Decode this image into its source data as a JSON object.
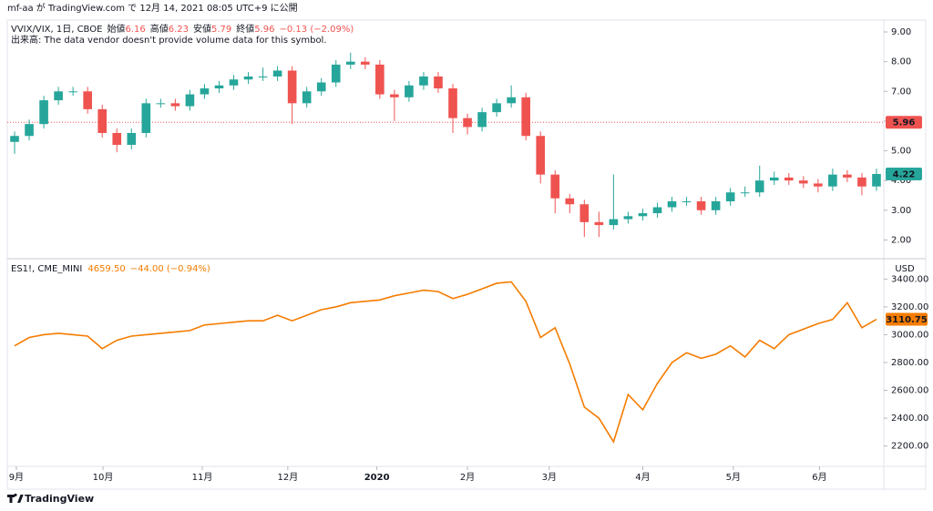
{
  "header": "mf-aa が TradingView.com で 12月 14, 2021 08:05 UTC+9 に公開",
  "footer": "TradingView",
  "chart_data": [
    {
      "type": "candlestick",
      "title": "VVIX/VIX, 1日, CBOE",
      "legend": [
        {
          "label": "始値",
          "value": "6.16"
        },
        {
          "label": "高値",
          "value": "6.23"
        },
        {
          "label": "安値",
          "value": "5.79"
        },
        {
          "label": "終値",
          "value": "5.96"
        }
      ],
      "change": "−0.13 (−2.09%)",
      "note": "出来高: The data vendor doesn't provide volume data for this symbol.",
      "up_color": "#26a69a",
      "down_color": "#ef5350",
      "price_line": 5.96,
      "xlim": [
        -0.5,
        59.5
      ],
      "ylim": [
        1.4,
        9.4
      ],
      "yticks": [
        {
          "value": 2,
          "label": "2.00"
        },
        {
          "value": 3,
          "label": "3.00"
        },
        {
          "value": 4,
          "label": "4.00"
        },
        {
          "value": 5,
          "label": "5.00"
        },
        {
          "value": 6,
          "label": "6.00"
        },
        {
          "value": 7,
          "label": "7.00"
        },
        {
          "value": 8,
          "label": "8.00"
        },
        {
          "value": 9,
          "label": "9.00"
        }
      ],
      "open": [
        5.3,
        5.5,
        5.9,
        6.7,
        7.0,
        7.0,
        6.4,
        5.6,
        5.2,
        5.6,
        6.6,
        6.6,
        6.5,
        6.9,
        7.1,
        7.2,
        7.4,
        7.5,
        7.5,
        7.7,
        6.6,
        7.0,
        7.3,
        7.9,
        8.0,
        7.9,
        6.9,
        6.8,
        7.2,
        7.5,
        7.1,
        6.1,
        5.8,
        6.3,
        6.6,
        6.8,
        5.5,
        4.2,
        3.4,
        3.2,
        2.6,
        2.5,
        2.7,
        2.8,
        2.9,
        3.1,
        3.3,
        3.3,
        3.0,
        3.3,
        3.6,
        3.6,
        4.0,
        4.1,
        4.0,
        3.9,
        3.8,
        4.2,
        4.1,
        3.8
      ],
      "high": [
        5.65,
        6.05,
        6.85,
        7.15,
        7.15,
        7.15,
        6.55,
        5.75,
        5.75,
        6.75,
        6.75,
        6.75,
        7.05,
        7.25,
        7.35,
        7.55,
        7.65,
        7.8,
        7.85,
        7.85,
        7.15,
        7.45,
        8.05,
        8.3,
        8.15,
        8.05,
        7.05,
        7.35,
        7.65,
        7.65,
        7.25,
        6.25,
        6.45,
        6.75,
        7.2,
        6.95,
        5.65,
        4.35,
        3.55,
        3.35,
        2.95,
        4.2,
        2.95,
        3.05,
        3.25,
        3.45,
        3.45,
        3.45,
        3.45,
        3.75,
        3.8,
        4.5,
        4.3,
        4.25,
        4.15,
        4.05,
        4.4,
        4.35,
        4.25,
        4.4
      ],
      "low": [
        4.9,
        5.35,
        5.75,
        6.55,
        6.85,
        6.25,
        5.45,
        4.95,
        5.05,
        5.45,
        6.45,
        6.35,
        6.35,
        6.75,
        6.95,
        7.05,
        7.25,
        7.35,
        7.35,
        5.9,
        6.45,
        6.85,
        7.15,
        7.75,
        7.75,
        6.75,
        6.0,
        6.65,
        7.05,
        6.95,
        5.6,
        5.55,
        5.65,
        6.15,
        6.45,
        5.35,
        3.9,
        2.9,
        2.9,
        2.1,
        2.1,
        2.35,
        2.55,
        2.65,
        2.75,
        2.95,
        3.15,
        2.85,
        2.85,
        3.15,
        3.45,
        3.45,
        3.85,
        3.85,
        3.75,
        3.6,
        3.65,
        3.95,
        3.5,
        3.65
      ],
      "close": [
        5.5,
        5.9,
        6.7,
        7.0,
        7.0,
        6.4,
        5.6,
        5.2,
        5.6,
        6.6,
        6.6,
        6.5,
        6.9,
        7.1,
        7.2,
        7.4,
        7.5,
        7.5,
        7.7,
        6.6,
        7.0,
        7.3,
        7.9,
        8.0,
        7.9,
        6.9,
        6.8,
        7.2,
        7.5,
        7.1,
        6.1,
        5.8,
        6.3,
        6.6,
        6.8,
        5.5,
        4.2,
        3.4,
        3.2,
        2.6,
        2.5,
        2.7,
        2.8,
        2.9,
        3.1,
        3.3,
        3.3,
        3.0,
        3.3,
        3.6,
        3.6,
        4.0,
        4.1,
        4.0,
        3.9,
        3.8,
        4.2,
        4.1,
        3.8,
        4.22
      ]
    },
    {
      "type": "line",
      "title": "ES1!, CME_MINI",
      "last": "4659.50",
      "change": "−44.00 (−0.94%)",
      "unit": "USD",
      "color": "#f57c00",
      "xlim": [
        -0.5,
        59.5
      ],
      "ylim": [
        2060,
        3540
      ],
      "xticks": [
        {
          "value": 0.12,
          "label": "9月"
        },
        {
          "value": 6.05,
          "label": "10月"
        },
        {
          "value": 12.85,
          "label": "11月"
        },
        {
          "value": 18.7,
          "label": "12月"
        },
        {
          "value": 24.8,
          "label": "2020"
        },
        {
          "value": 31.0,
          "label": "2月"
        },
        {
          "value": 36.6,
          "label": "3月"
        },
        {
          "value": 43.0,
          "label": "4月"
        },
        {
          "value": 49.2,
          "label": "5月"
        },
        {
          "value": 55.1,
          "label": "6月"
        }
      ],
      "yticks": [
        {
          "value": 2200,
          "label": "2200.00"
        },
        {
          "value": 2400,
          "label": "2400.00"
        },
        {
          "value": 2600,
          "label": "2600.00"
        },
        {
          "value": 2800,
          "label": "2800.00"
        },
        {
          "value": 3000,
          "label": "3000.00"
        },
        {
          "value": 3200,
          "label": "3200.00"
        },
        {
          "value": 3400,
          "label": "3400.00"
        }
      ],
      "values": [
        2920,
        2980,
        3000,
        3010,
        3000,
        2990,
        2900,
        2960,
        2990,
        3000,
        3010,
        3020,
        3030,
        3070,
        3080,
        3090,
        3100,
        3100,
        3140,
        3100,
        3140,
        3180,
        3200,
        3230,
        3240,
        3250,
        3280,
        3300,
        3320,
        3310,
        3260,
        3290,
        3330,
        3370,
        3380,
        3240,
        2980,
        3050,
        2790,
        2480,
        2400,
        2230,
        2570,
        2460,
        2650,
        2800,
        2870,
        2830,
        2860,
        2920,
        2840,
        2960,
        2900,
        3000,
        3040,
        3080,
        3110,
        3230,
        3050,
        3110.75
      ]
    }
  ]
}
